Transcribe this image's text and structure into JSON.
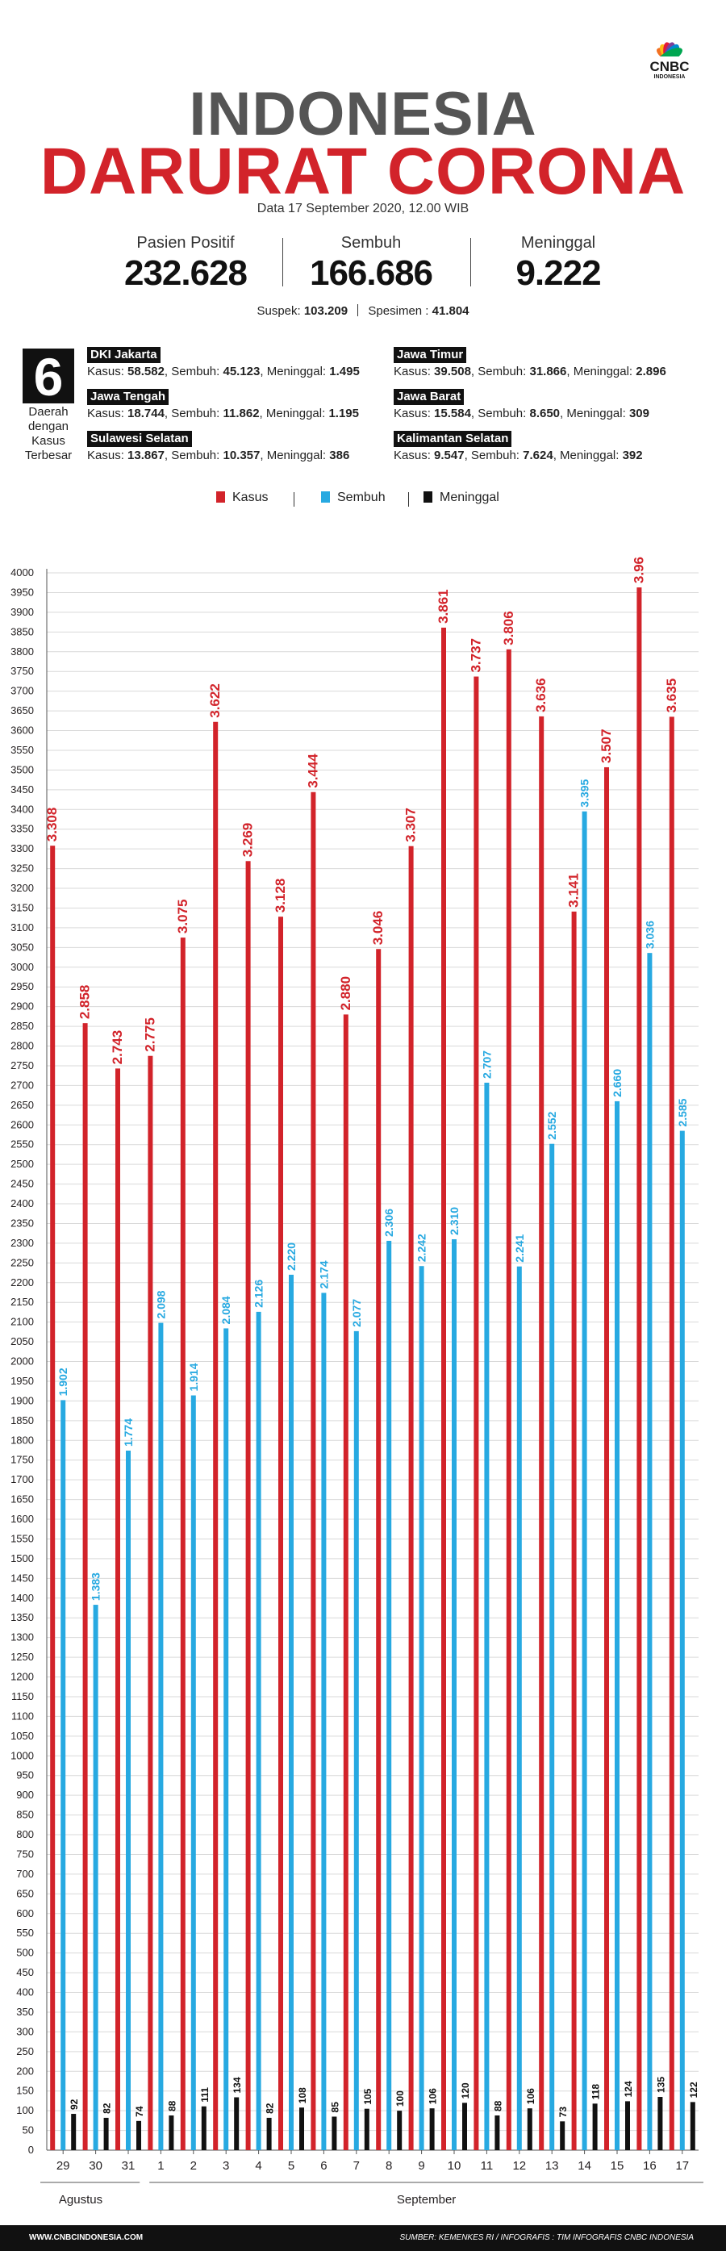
{
  "logo": {
    "line1": "CNBC",
    "line2": "INDONESIA"
  },
  "header": {
    "title_line1": "INDONESIA",
    "title_line2": "DARURAT CORONA",
    "data_line": "Data 17 September 2020, 12.00 WIB"
  },
  "stats": [
    {
      "label": "Pasien Positif",
      "value": "232.628"
    },
    {
      "label": "Sembuh",
      "value": "166.686"
    },
    {
      "label": "Meninggal",
      "value": "9.222"
    }
  ],
  "suspek": {
    "suspek_label": "Suspek:",
    "suspek_value": "103.209",
    "spesimen_label": "Spesimen :",
    "spesimen_value": "41.804"
  },
  "top_regions": {
    "count": "6",
    "label": "Daerah dengan Kasus Terbesar",
    "regions": [
      {
        "name": "DKI Jakarta",
        "kasus": "58.582",
        "sembuh": "45.123",
        "meninggal": "1.495"
      },
      {
        "name": "Jawa Timur",
        "kasus": "39.508",
        "sembuh": "31.866",
        "meninggal": "2.896"
      },
      {
        "name": "Jawa Tengah",
        "kasus": "18.744",
        "sembuh": "11.862",
        "meninggal": "1.195"
      },
      {
        "name": "Jawa Barat",
        "kasus": "15.584",
        "sembuh": "8.650",
        "meninggal": "309"
      },
      {
        "name": "Sulawesi Selatan",
        "kasus": "13.867",
        "sembuh": "10.357",
        "meninggal": "386"
      },
      {
        "name": "Kalimantan Selatan",
        "kasus": "9.547",
        "sembuh": "7.624",
        "meninggal": "392"
      }
    ],
    "kasus_label": "Kasus:",
    "sembuh_label": "Sembuh:",
    "meninggal_label": "Meninggal:"
  },
  "legend": [
    {
      "name": "Kasus",
      "color": "#d2232a"
    },
    {
      "name": "Sembuh",
      "color": "#27a9e1"
    },
    {
      "name": "Meninggal",
      "color": "#111111"
    }
  ],
  "chart_data": {
    "type": "bar",
    "categories": [
      "29",
      "30",
      "31",
      "1",
      "2",
      "3",
      "4",
      "5",
      "6",
      "7",
      "8",
      "9",
      "10",
      "11",
      "12",
      "13",
      "14",
      "15",
      "16",
      "17"
    ],
    "month_groups": [
      {
        "label": "Agustus",
        "count": 3
      },
      {
        "label": "September",
        "count": 17
      }
    ],
    "series": [
      {
        "name": "Kasus",
        "color": "#d2232a",
        "values": [
          3308,
          2858,
          2743,
          2775,
          3075,
          3622,
          3269,
          3128,
          3444,
          2880,
          3046,
          3307,
          3861,
          3737,
          3806,
          3636,
          3141,
          3507,
          3963,
          3635
        ],
        "labels": [
          "3.308",
          "2.858",
          "2.743",
          "2.775",
          "3.075",
          "3.622",
          "3.269",
          "3.128",
          "3.444",
          "2.880",
          "3.046",
          "3.307",
          "3.861",
          "3.737",
          "3.806",
          "3.636",
          "3.141",
          "3.507",
          "3.963",
          "3.635"
        ]
      },
      {
        "name": "Sembuh",
        "color": "#27a9e1",
        "values": [
          1902,
          1383,
          1774,
          2098,
          1914,
          2084,
          2126,
          2220,
          2174,
          2077,
          2306,
          2242,
          2310,
          2707,
          2241,
          2552,
          3395,
          2660,
          3036,
          2585
        ],
        "labels": [
          "1.902",
          "1.383",
          "1.774",
          "2.098",
          "1.914",
          "2.084",
          "2.126",
          "2.220",
          "2.174",
          "2.077",
          "2.306",
          "2.242",
          "2.310",
          "2.707",
          "2.241",
          "2.552",
          "3.395",
          "2.660",
          "3.036",
          "2.585"
        ]
      },
      {
        "name": "Meninggal",
        "color": "#111111",
        "values": [
          92,
          82,
          74,
          88,
          111,
          134,
          82,
          108,
          85,
          105,
          100,
          106,
          120,
          88,
          106,
          73,
          118,
          124,
          135,
          122
        ],
        "labels": [
          "92",
          "82",
          "74",
          "88",
          "111",
          "134",
          "82",
          "108",
          "85",
          "105",
          "100",
          "106",
          "120",
          "88",
          "106",
          "73",
          "118",
          "124",
          "135",
          "122"
        ]
      }
    ],
    "ylim": [
      0,
      4000
    ],
    "yticks": [
      0,
      50,
      100,
      150,
      200,
      250,
      300,
      350,
      400,
      450,
      500,
      550,
      600,
      650,
      700,
      750,
      800,
      850,
      900,
      950,
      1000,
      1050,
      1100,
      1150,
      1200,
      1250,
      1300,
      1350,
      1400,
      1450,
      1500,
      1550,
      1600,
      1650,
      1700,
      1750,
      1800,
      1850,
      1900,
      1950,
      2000,
      2050,
      2100,
      2150,
      2200,
      2250,
      2300,
      2350,
      2400,
      2450,
      2500,
      2550,
      2600,
      2650,
      2700,
      2750,
      2800,
      2850,
      2900,
      2950,
      3000,
      3050,
      3100,
      3150,
      3200,
      3250,
      3300,
      3350,
      3400,
      3450,
      3500,
      3550,
      3600,
      3650,
      3700,
      3750,
      3800,
      3850,
      3900,
      3950,
      4000
    ],
    "grid": true
  },
  "footer": {
    "left": "WWW.CNBCINDONESIA.COM",
    "right": "SUMBER: KEMENKES RI / INFOGRAFIS : TIM INFOGRAFIS CNBC INDONESIA"
  }
}
